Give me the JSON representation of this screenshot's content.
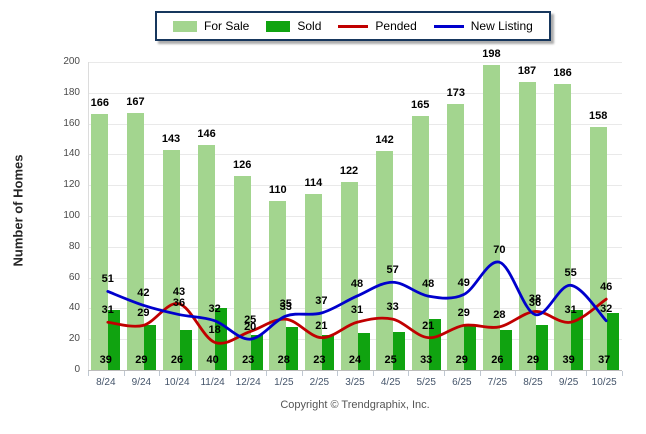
{
  "legend": {
    "note": "chart legend rendered from chart_data.series"
  },
  "footer": {
    "text": "Copyright © Trendgraphix, Inc."
  },
  "chart_data": {
    "type": "combo (bar + line)",
    "title": "",
    "xlabel": "",
    "ylabel": "Number of Homes",
    "ylim": [
      0,
      200
    ],
    "ytick_step": 20,
    "grid": true,
    "legend_position": "top",
    "categories": [
      "8/24",
      "9/24",
      "10/24",
      "11/24",
      "12/24",
      "1/25",
      "2/25",
      "3/25",
      "4/25",
      "5/25",
      "6/25",
      "7/25",
      "8/25",
      "9/25",
      "10/25"
    ],
    "series": [
      {
        "name": "For Sale",
        "type": "bar",
        "color": "#A3D58F",
        "values": [
          166,
          167,
          143,
          146,
          126,
          110,
          114,
          122,
          142,
          165,
          173,
          198,
          187,
          186,
          158
        ]
      },
      {
        "name": "Sold",
        "type": "bar",
        "color": "#10A310",
        "values": [
          39,
          29,
          26,
          40,
          23,
          28,
          23,
          24,
          25,
          33,
          29,
          26,
          29,
          39,
          37
        ]
      },
      {
        "name": "Pended",
        "type": "line",
        "color": "#C00000",
        "values": [
          31,
          29,
          43,
          18,
          25,
          33,
          21,
          31,
          33,
          21,
          29,
          28,
          38,
          31,
          46
        ]
      },
      {
        "name": "New Listing",
        "type": "line",
        "color": "#0000CC",
        "values": [
          51,
          42,
          36,
          32,
          20,
          35,
          37,
          48,
          57,
          48,
          49,
          70,
          36,
          55,
          32
        ]
      }
    ]
  }
}
